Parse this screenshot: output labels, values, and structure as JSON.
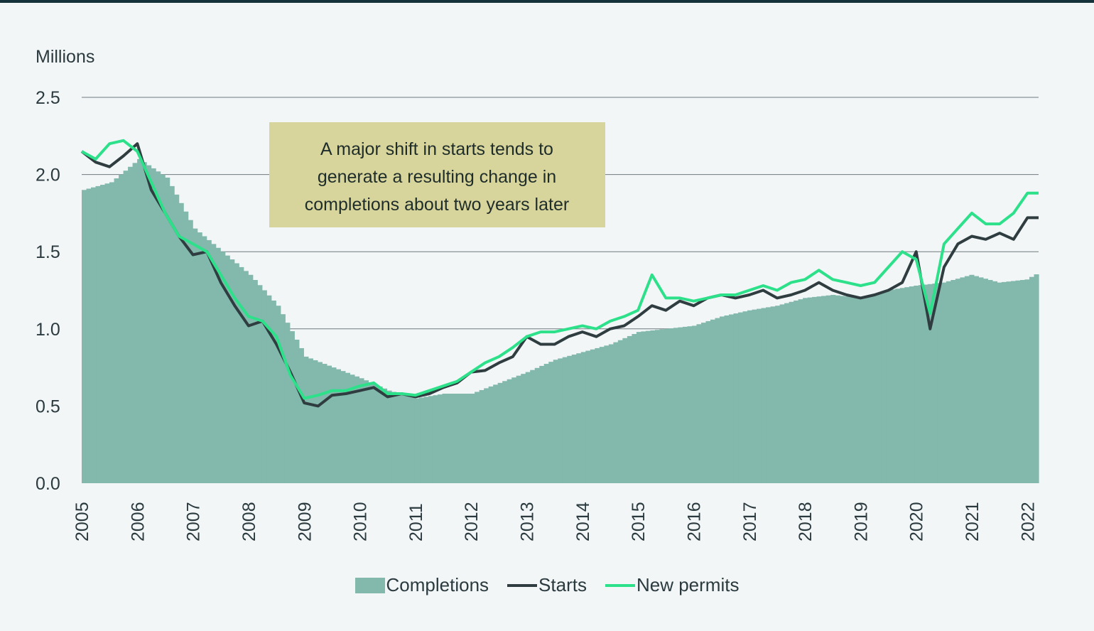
{
  "chart_data": {
    "type": "bar+line",
    "unit_label": "Millions",
    "annotation": "A major shift in starts tends to generate a resulting change in completions about two years later",
    "annotation_lines": [
      "A major shift in starts tends to",
      "generate a resulting change in",
      "completions about two years later"
    ],
    "ylim": [
      0,
      2.5
    ],
    "yticks": [
      "0.0",
      "0.5",
      "1.0",
      "1.5",
      "2.0",
      "2.5"
    ],
    "xticks": [
      "2005",
      "2006",
      "2007",
      "2008",
      "2009",
      "2010",
      "2011",
      "2012",
      "2013",
      "2014",
      "2015",
      "2016",
      "2017",
      "2018",
      "2019",
      "2020",
      "2021",
      "2022"
    ],
    "grid": true,
    "legend_position": "bottom",
    "series": [
      {
        "name": "Completions",
        "type": "bar",
        "color": "#82b9ac",
        "x": [
          2005.0,
          2005.5,
          2006.0,
          2006.5,
          2007.0,
          2007.5,
          2008.0,
          2008.5,
          2009.0,
          2009.5,
          2010.0,
          2010.5,
          2011.0,
          2011.5,
          2012.0,
          2012.5,
          2013.0,
          2013.5,
          2014.0,
          2014.5,
          2015.0,
          2015.5,
          2016.0,
          2016.5,
          2017.0,
          2017.5,
          2018.0,
          2018.5,
          2019.0,
          2019.5,
          2020.0,
          2020.5,
          2021.0,
          2021.5,
          2022.0,
          2022.2
        ],
        "values": [
          1.9,
          1.95,
          2.1,
          1.98,
          1.65,
          1.5,
          1.35,
          1.15,
          0.82,
          0.75,
          0.68,
          0.6,
          0.55,
          0.58,
          0.58,
          0.65,
          0.72,
          0.8,
          0.85,
          0.9,
          0.98,
          1.0,
          1.02,
          1.08,
          1.12,
          1.15,
          1.2,
          1.22,
          1.2,
          1.25,
          1.28,
          1.3,
          1.35,
          1.3,
          1.32,
          1.36
        ]
      },
      {
        "name": "Starts",
        "type": "line",
        "color": "#2f3d40",
        "x": [
          2005.0,
          2005.25,
          2005.5,
          2005.75,
          2006.0,
          2006.25,
          2006.5,
          2006.75,
          2007.0,
          2007.25,
          2007.5,
          2007.75,
          2008.0,
          2008.25,
          2008.5,
          2008.75,
          2009.0,
          2009.25,
          2009.5,
          2009.75,
          2010.0,
          2010.25,
          2010.5,
          2010.75,
          2011.0,
          2011.25,
          2011.5,
          2011.75,
          2012.0,
          2012.25,
          2012.5,
          2012.75,
          2013.0,
          2013.25,
          2013.5,
          2013.75,
          2014.0,
          2014.25,
          2014.5,
          2014.75,
          2015.0,
          2015.25,
          2015.5,
          2015.75,
          2016.0,
          2016.25,
          2016.5,
          2016.75,
          2017.0,
          2017.25,
          2017.5,
          2017.75,
          2018.0,
          2018.25,
          2018.5,
          2018.75,
          2019.0,
          2019.25,
          2019.5,
          2019.75,
          2020.0,
          2020.25,
          2020.5,
          2020.75,
          2021.0,
          2021.25,
          2021.5,
          2021.75,
          2022.0,
          2022.2
        ],
        "values": [
          2.15,
          2.08,
          2.05,
          2.12,
          2.2,
          1.9,
          1.75,
          1.6,
          1.48,
          1.5,
          1.3,
          1.15,
          1.02,
          1.05,
          0.9,
          0.72,
          0.52,
          0.5,
          0.57,
          0.58,
          0.6,
          0.62,
          0.56,
          0.58,
          0.56,
          0.58,
          0.62,
          0.65,
          0.72,
          0.73,
          0.78,
          0.82,
          0.95,
          0.9,
          0.9,
          0.95,
          0.98,
          0.95,
          1.0,
          1.02,
          1.08,
          1.15,
          1.12,
          1.18,
          1.15,
          1.2,
          1.22,
          1.2,
          1.22,
          1.25,
          1.2,
          1.22,
          1.25,
          1.3,
          1.25,
          1.22,
          1.2,
          1.22,
          1.25,
          1.3,
          1.5,
          1.0,
          1.4,
          1.55,
          1.6,
          1.58,
          1.62,
          1.58,
          1.72,
          1.72
        ]
      },
      {
        "name": "New permits",
        "type": "line",
        "color": "#2de08a",
        "x": [
          2005.0,
          2005.25,
          2005.5,
          2005.75,
          2006.0,
          2006.25,
          2006.5,
          2006.75,
          2007.0,
          2007.25,
          2007.5,
          2007.75,
          2008.0,
          2008.25,
          2008.5,
          2008.75,
          2009.0,
          2009.25,
          2009.5,
          2009.75,
          2010.0,
          2010.25,
          2010.5,
          2010.75,
          2011.0,
          2011.25,
          2011.5,
          2011.75,
          2012.0,
          2012.25,
          2012.5,
          2012.75,
          2013.0,
          2013.25,
          2013.5,
          2013.75,
          2014.0,
          2014.25,
          2014.5,
          2014.75,
          2015.0,
          2015.25,
          2015.5,
          2015.75,
          2016.0,
          2016.25,
          2016.5,
          2016.75,
          2017.0,
          2017.25,
          2017.5,
          2017.75,
          2018.0,
          2018.25,
          2018.5,
          2018.75,
          2019.0,
          2019.25,
          2019.5,
          2019.75,
          2020.0,
          2020.25,
          2020.5,
          2020.75,
          2021.0,
          2021.25,
          2021.5,
          2021.75,
          2022.0,
          2022.2
        ],
        "values": [
          2.15,
          2.1,
          2.2,
          2.22,
          2.15,
          1.95,
          1.75,
          1.6,
          1.55,
          1.5,
          1.35,
          1.2,
          1.08,
          1.05,
          0.95,
          0.7,
          0.55,
          0.57,
          0.6,
          0.6,
          0.63,
          0.65,
          0.58,
          0.58,
          0.57,
          0.6,
          0.63,
          0.66,
          0.72,
          0.78,
          0.82,
          0.88,
          0.95,
          0.98,
          0.98,
          1.0,
          1.02,
          1.0,
          1.05,
          1.08,
          1.12,
          1.35,
          1.2,
          1.2,
          1.18,
          1.2,
          1.22,
          1.22,
          1.25,
          1.28,
          1.25,
          1.3,
          1.32,
          1.38,
          1.32,
          1.3,
          1.28,
          1.3,
          1.4,
          1.5,
          1.45,
          1.1,
          1.55,
          1.65,
          1.75,
          1.68,
          1.68,
          1.75,
          1.88,
          1.88
        ]
      }
    ]
  }
}
